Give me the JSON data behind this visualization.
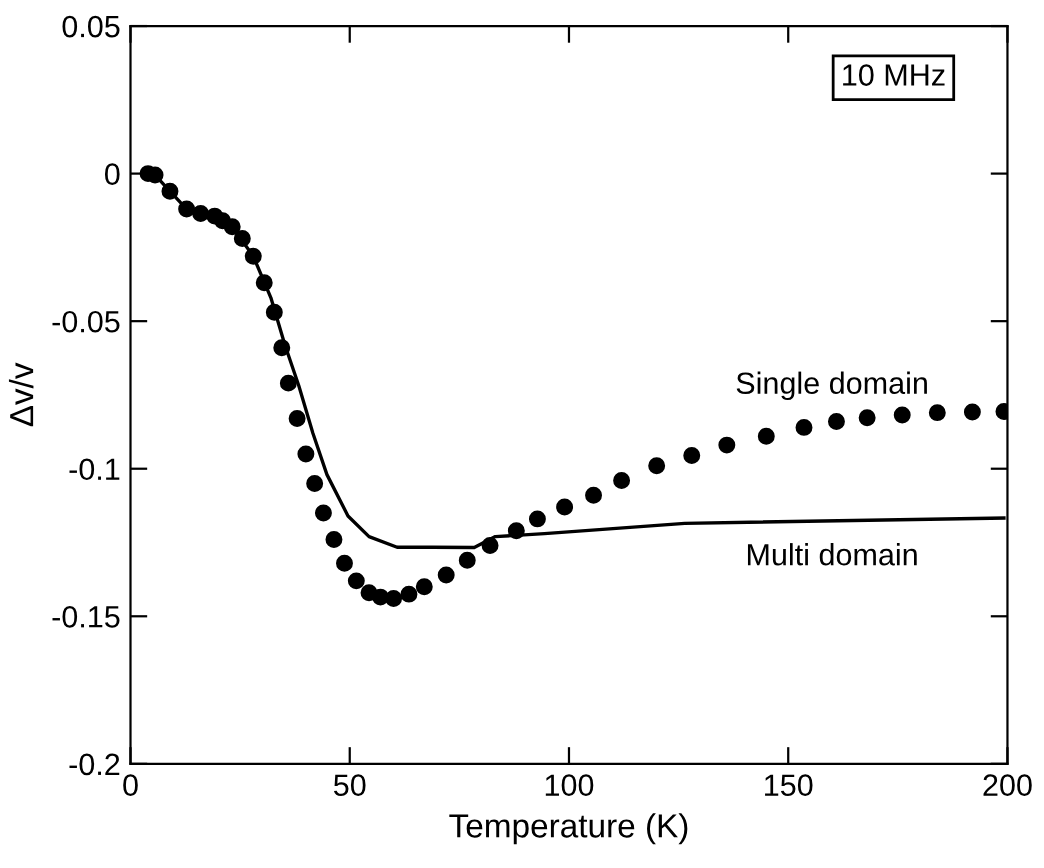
{
  "chart_data": {
    "type": "line",
    "xlabel": "Temperature (K)",
    "ylabel": "Δv/v",
    "xlim": [
      0,
      200
    ],
    "ylim": [
      -0.2,
      0.05
    ],
    "xticks": [
      0,
      50,
      100,
      150,
      200
    ],
    "yticks": [
      0.05,
      0,
      {
        "value": -0.05,
        "label": "-0.05"
      },
      {
        "value": -0.1,
        "label": "-0.1"
      },
      {
        "value": -0.15,
        "label": "-0.15"
      },
      {
        "value": -0.2,
        "label": "-0.2"
      }
    ],
    "grid": false,
    "annotations": [
      "10 MHz"
    ],
    "series": [
      {
        "name": "Single domain",
        "type": "scatter",
        "marker": "circle",
        "color": "#000000",
        "x": [
          4,
          5.6,
          9,
          12.8,
          16,
          19.2,
          21,
          23.2,
          25.5,
          28,
          30.5,
          32.8,
          34.5,
          36,
          38,
          40,
          42,
          44,
          46.4,
          48.8,
          51.5,
          54.4,
          57,
          60,
          63.5,
          67,
          72,
          76.8,
          82,
          88,
          92.8,
          99,
          105.6,
          112,
          120,
          128,
          136,
          145,
          153.6,
          161,
          168,
          176,
          184,
          192,
          199.2
        ],
        "values": [
          0,
          -0.0005,
          -0.006,
          -0.012,
          -0.0135,
          -0.0144,
          -0.016,
          -0.018,
          -0.022,
          -0.028,
          -0.037,
          -0.047,
          -0.059,
          -0.071,
          -0.083,
          -0.095,
          -0.105,
          -0.115,
          -0.124,
          -0.132,
          -0.138,
          -0.142,
          -0.1435,
          -0.144,
          -0.1425,
          -0.14,
          -0.136,
          -0.131,
          -0.126,
          -0.121,
          -0.117,
          -0.113,
          -0.109,
          -0.104,
          -0.099,
          -0.0955,
          -0.092,
          -0.089,
          -0.086,
          -0.084,
          -0.0827,
          -0.0818,
          -0.081,
          -0.0808,
          -0.0806
        ]
      },
      {
        "name": "Multi domain",
        "type": "line",
        "color": "#000000",
        "x": [
          4,
          5.6,
          12.8,
          19.2,
          23.2,
          28,
          32,
          35.2,
          38.4,
          41.6,
          44.8,
          49.6,
          54.4,
          60.8,
          68.8,
          78.4,
          83.2,
          94.4,
          126.4,
          199.2
        ],
        "values": [
          0,
          -0.0005,
          -0.012,
          -0.0144,
          -0.018,
          -0.028,
          -0.042,
          -0.058,
          -0.072,
          -0.088,
          -0.102,
          -0.116,
          -0.123,
          -0.1266,
          -0.1266,
          -0.1267,
          -0.123,
          -0.122,
          -0.1185,
          -0.1167
        ]
      }
    ]
  }
}
